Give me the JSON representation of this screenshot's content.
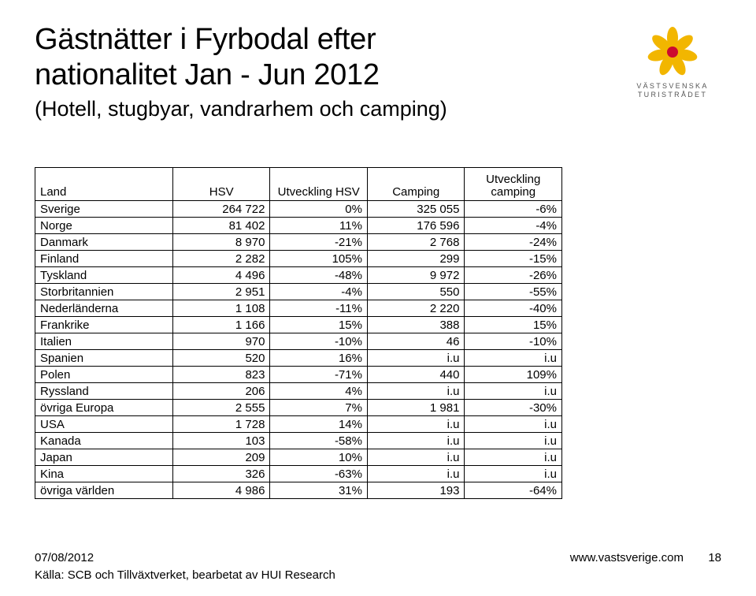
{
  "title_line1": "Gästnätter i Fyrbodal efter",
  "title_line2": "nationalitet Jan - Jun 2012",
  "subtitle": "(Hotell, stugbyar, vandrarhem och camping)",
  "logo": {
    "line1": "VÄSTSVENSKA",
    "line2": "TURISTRÅDET",
    "petal_color": "#f2b600",
    "circle_color": "#cc0a2f"
  },
  "table": {
    "headers": {
      "land": "Land",
      "hsv": "HSV",
      "utv_hsv": "Utveckling HSV",
      "camping": "Camping",
      "utv_camping_l1": "Utveckling",
      "utv_camping_l2": "camping"
    },
    "rows": [
      {
        "land": "Sverige",
        "hsv": "264 722",
        "utv_hsv": "0%",
        "camping": "325 055",
        "utv_camping": "-6%"
      },
      {
        "land": "Norge",
        "hsv": "81 402",
        "utv_hsv": "11%",
        "camping": "176 596",
        "utv_camping": "-4%"
      },
      {
        "land": "Danmark",
        "hsv": "8 970",
        "utv_hsv": "-21%",
        "camping": "2 768",
        "utv_camping": "-24%"
      },
      {
        "land": "Finland",
        "hsv": "2 282",
        "utv_hsv": "105%",
        "camping": "299",
        "utv_camping": "-15%"
      },
      {
        "land": "Tyskland",
        "hsv": "4 496",
        "utv_hsv": "-48%",
        "camping": "9 972",
        "utv_camping": "-26%"
      },
      {
        "land": "Storbritannien",
        "hsv": "2 951",
        "utv_hsv": "-4%",
        "camping": "550",
        "utv_camping": "-55%"
      },
      {
        "land": "Nederländerna",
        "hsv": "1 108",
        "utv_hsv": "-11%",
        "camping": "2 220",
        "utv_camping": "-40%"
      },
      {
        "land": "Frankrike",
        "hsv": "1 166",
        "utv_hsv": "15%",
        "camping": "388",
        "utv_camping": "15%"
      },
      {
        "land": "Italien",
        "hsv": "970",
        "utv_hsv": "-10%",
        "camping": "46",
        "utv_camping": "-10%"
      },
      {
        "land": "Spanien",
        "hsv": "520",
        "utv_hsv": "16%",
        "camping": "i.u",
        "utv_camping": "i.u"
      },
      {
        "land": "Polen",
        "hsv": "823",
        "utv_hsv": "-71%",
        "camping": "440",
        "utv_camping": "109%"
      },
      {
        "land": "Ryssland",
        "hsv": "206",
        "utv_hsv": "4%",
        "camping": "i.u",
        "utv_camping": "i.u"
      },
      {
        "land": "övriga Europa",
        "hsv": "2 555",
        "utv_hsv": "7%",
        "camping": "1 981",
        "utv_camping": "-30%"
      },
      {
        "land": "USA",
        "hsv": "1 728",
        "utv_hsv": "14%",
        "camping": "i.u",
        "utv_camping": "i.u"
      },
      {
        "land": "Kanada",
        "hsv": "103",
        "utv_hsv": "-58%",
        "camping": "i.u",
        "utv_camping": "i.u"
      },
      {
        "land": "Japan",
        "hsv": "209",
        "utv_hsv": "10%",
        "camping": "i.u",
        "utv_camping": "i.u"
      },
      {
        "land": "Kina",
        "hsv": "326",
        "utv_hsv": "-63%",
        "camping": "i.u",
        "utv_camping": "i.u"
      },
      {
        "land": "övriga världen",
        "hsv": "4 986",
        "utv_hsv": "31%",
        "camping": "193",
        "utv_camping": "-64%"
      }
    ]
  },
  "footer": {
    "date": "07/08/2012",
    "url": "www.vastsverige.com",
    "page": "18",
    "source": "Källa: SCB och Tillväxtverket, bearbetat av HUI Research"
  }
}
